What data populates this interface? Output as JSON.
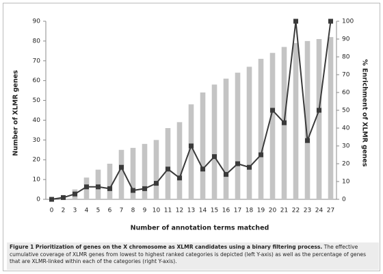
{
  "chart_data": {
    "type": "bar",
    "x_label": "Number of annotation terms matched",
    "y_label": "Number of XLMR genes",
    "y2_label": "% Enrichment of XLMR genes",
    "categories": [
      "0",
      "2",
      "3",
      "4",
      "5",
      "6",
      "7",
      "8",
      "9",
      "10",
      "11",
      "12",
      "13",
      "14",
      "15",
      "16",
      "17",
      "18",
      "19",
      "20",
      "21",
      "22",
      "23",
      "24",
      "27"
    ],
    "series": [
      {
        "type": "bar",
        "color": "#c4c4c4",
        "values": [
          0,
          1,
          5,
          11,
          15,
          18,
          25,
          26,
          28,
          30,
          36,
          39,
          48,
          54,
          58,
          61,
          64,
          67,
          71,
          74,
          77,
          79,
          80,
          81,
          82
        ]
      },
      {
        "type": "line",
        "axis": "y2",
        "color": "#3a3a3a",
        "values": [
          0,
          1,
          3,
          7,
          7,
          6,
          18,
          5,
          6,
          9,
          17,
          12,
          30,
          17,
          24,
          14,
          20,
          18,
          25,
          50,
          43,
          100,
          33,
          50,
          100
        ]
      }
    ],
    "ylim": [
      0,
      90
    ],
    "yticks": [
      0,
      10,
      20,
      30,
      40,
      50,
      60,
      70,
      80,
      90
    ],
    "y2lim": [
      0,
      100
    ],
    "y2ticks": [
      0,
      10,
      20,
      30,
      40,
      50,
      60,
      70,
      80,
      90,
      100
    ]
  },
  "caption": {
    "label": "Figure 1",
    "title": "Prioritization of genes on the X chromosome as XLMR candidates using a binary filtering process.",
    "text": "The effective cumulative coverage of XLMR genes from lowest to highest ranked categories is depicted (left Y-axis) as well as the percentage of genes that are XLMR-linked within each of the categories (right Y-axis)."
  }
}
